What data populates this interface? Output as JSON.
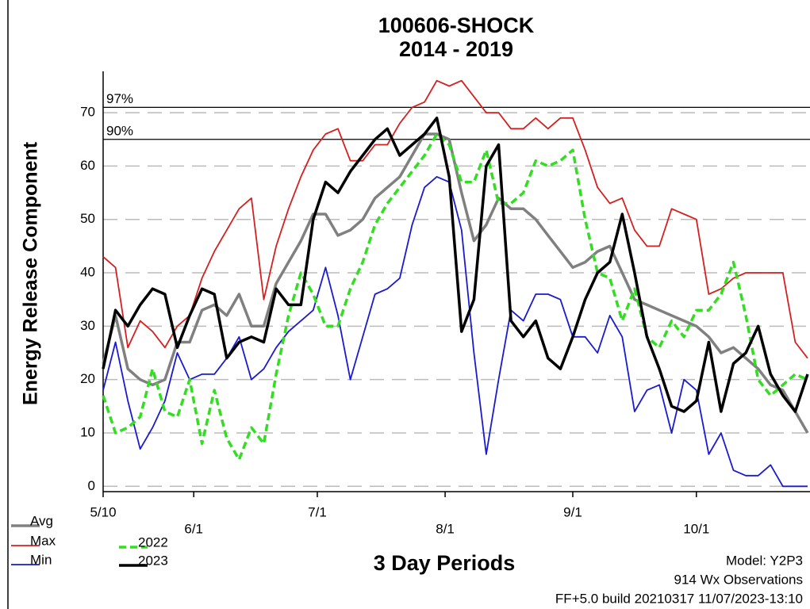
{
  "chart_data": {
    "type": "line",
    "title": "100606-SHOCK",
    "subtitle": "2014 - 2019",
    "xlabel": "3 Day Periods",
    "ylabel": "Energy Release Component",
    "x": [
      0,
      1,
      2,
      3,
      4,
      5,
      6,
      7,
      8,
      9,
      10,
      11,
      12,
      13,
      14,
      15,
      16,
      17,
      18,
      19,
      20,
      21,
      22,
      23,
      24,
      25,
      26,
      27,
      28,
      29,
      30,
      31,
      32,
      33,
      34,
      35,
      36,
      37,
      38,
      39,
      40,
      41,
      42,
      43,
      44,
      45,
      46,
      47,
      48,
      49,
      50,
      51,
      52,
      53,
      54,
      55,
      56,
      57
    ],
    "xlim": [
      0,
      57
    ],
    "xticks": [
      {
        "value": 0,
        "label": "5/10"
      },
      {
        "value": 7.33,
        "label": "6/1"
      },
      {
        "value": 17.33,
        "label": "7/1"
      },
      {
        "value": 27.67,
        "label": "8/1"
      },
      {
        "value": 38,
        "label": "9/1"
      },
      {
        "value": 48,
        "label": "10/1"
      }
    ],
    "ylim": [
      -1,
      77
    ],
    "yticks": [
      0,
      10,
      20,
      30,
      40,
      50,
      60,
      70
    ],
    "grid": true,
    "reference_lines": [
      {
        "label": "97%",
        "value": 71
      },
      {
        "label": "90%",
        "value": 65
      }
    ],
    "series": [
      {
        "name": "Avg",
        "color": "#808080",
        "style": "solid",
        "values": [
          23,
          32,
          22,
          20,
          19,
          20,
          27,
          27,
          33,
          34,
          32,
          36,
          30,
          30,
          38,
          42,
          46,
          51,
          51,
          47,
          48,
          50,
          54,
          56,
          58,
          62,
          66,
          66,
          65,
          55,
          46,
          49,
          54,
          52,
          52,
          50,
          47,
          44,
          41,
          42,
          44,
          45,
          40,
          35,
          34,
          33,
          32,
          31,
          30,
          28,
          25,
          26,
          24,
          22,
          19,
          18,
          14,
          10
        ]
      },
      {
        "name": "Max",
        "color": "#d42020",
        "style": "thin",
        "values": [
          43,
          41,
          26,
          31,
          29,
          26,
          30,
          32,
          39,
          44,
          48,
          52,
          54,
          35,
          45,
          52,
          58,
          63,
          66,
          67,
          61,
          61,
          64,
          64,
          68,
          71,
          72,
          76,
          75,
          76,
          73,
          70,
          70,
          67,
          67,
          69,
          67,
          69,
          69,
          63,
          56,
          53,
          54,
          48,
          45,
          45,
          52,
          51,
          50,
          36,
          37,
          39,
          40,
          40,
          40,
          40,
          27,
          24
        ]
      },
      {
        "name": "Min",
        "color": "#1a1ad0",
        "style": "thin",
        "values": [
          18,
          27,
          16,
          7,
          11,
          16,
          25,
          20,
          21,
          21,
          24,
          28,
          20,
          22,
          26,
          29,
          31,
          33,
          41,
          32,
          20,
          28,
          36,
          37,
          39,
          49,
          56,
          58,
          57,
          48,
          25,
          6,
          20,
          33,
          31,
          36,
          36,
          35,
          28,
          28,
          25,
          32,
          28,
          14,
          18,
          19,
          10,
          20,
          18,
          6,
          10,
          3,
          2,
          2,
          4,
          0,
          0,
          0
        ]
      },
      {
        "name": "2022",
        "color": "#33dd22",
        "style": "dashed",
        "values": [
          17,
          10,
          11,
          13,
          22,
          14,
          13,
          20,
          8,
          18,
          9,
          5,
          11,
          8,
          21,
          32,
          40,
          36,
          30,
          30,
          37,
          42,
          49,
          53,
          56,
          59,
          62,
          66,
          64,
          57,
          57,
          63,
          53,
          53,
          55,
          61,
          60,
          61,
          63,
          50,
          40,
          39,
          31,
          37,
          28,
          26,
          31,
          28,
          33,
          33,
          36,
          42,
          32,
          20,
          17,
          19,
          21,
          20
        ]
      },
      {
        "name": "2023",
        "color": "#000000",
        "style": "solid",
        "values": [
          22,
          33,
          30,
          34,
          37,
          36,
          26,
          32,
          37,
          36,
          24,
          27,
          28,
          27,
          37,
          34,
          34,
          50,
          57,
          55,
          59,
          62,
          65,
          67,
          62,
          64,
          66,
          69,
          58,
          29,
          35,
          60,
          64,
          31,
          28,
          31,
          24,
          22,
          28,
          35,
          40,
          42,
          51,
          40,
          28,
          22,
          15,
          14,
          16,
          27,
          14,
          23,
          25,
          30,
          21,
          17,
          14,
          21
        ]
      }
    ],
    "annotations": [
      "Model: Y2P3",
      "914 Wx Observations",
      "FF+5.0 build 20210317 11/07/2023-13:10"
    ]
  }
}
